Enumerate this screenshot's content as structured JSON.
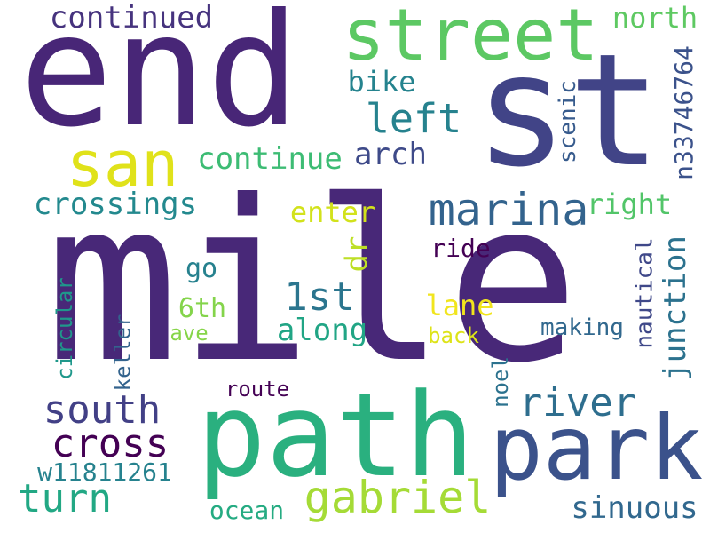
{
  "words": [
    {
      "text": "mile",
      "color": "#482878"
    },
    {
      "text": "end",
      "color": "#482677"
    },
    {
      "text": "st",
      "color": "#414487"
    },
    {
      "text": "path",
      "color": "#2ab07f"
    },
    {
      "text": "street",
      "color": "#5cc863"
    },
    {
      "text": "park",
      "color": "#3b528b"
    },
    {
      "text": "san",
      "color": "#e0e21a"
    },
    {
      "text": "marina",
      "color": "#33638d"
    },
    {
      "text": "gabriel",
      "color": "#a5db36"
    },
    {
      "text": "left",
      "color": "#26828e"
    },
    {
      "text": "south",
      "color": "#424086"
    },
    {
      "text": "cross",
      "color": "#440154"
    },
    {
      "text": "river",
      "color": "#2e6e8e"
    },
    {
      "text": "turn",
      "color": "#22a884"
    },
    {
      "text": "1st",
      "color": "#2b758e"
    },
    {
      "text": "continue",
      "color": "#3dbc74"
    },
    {
      "text": "continued",
      "color": "#46337e"
    },
    {
      "text": "crossings",
      "color": "#23898e"
    },
    {
      "text": "junction",
      "color": "#2c728e"
    },
    {
      "text": "dr",
      "color": "#bddf26"
    },
    {
      "text": "along",
      "color": "#21a585"
    },
    {
      "text": "sinuous",
      "color": "#31688e"
    },
    {
      "text": "arch",
      "color": "#3e4a89"
    },
    {
      "text": "north",
      "color": "#5ec962"
    },
    {
      "text": "n33746764",
      "color": "#3b528b"
    },
    {
      "text": "right",
      "color": "#52c569"
    },
    {
      "text": "enter",
      "color": "#d2e21b"
    },
    {
      "text": "bike",
      "color": "#25838e"
    },
    {
      "text": "lane",
      "color": "#f1e51d"
    },
    {
      "text": "go",
      "color": "#26818e"
    },
    {
      "text": "6th",
      "color": "#84d44b"
    },
    {
      "text": "w11811261",
      "color": "#26828e"
    },
    {
      "text": "ocean",
      "color": "#25ab82"
    },
    {
      "text": "scenic",
      "color": "#375b8d"
    },
    {
      "text": "nautical",
      "color": "#3f4889"
    },
    {
      "text": "ride",
      "color": "#440154"
    },
    {
      "text": "making",
      "color": "#31688e"
    },
    {
      "text": "back",
      "color": "#dde318"
    },
    {
      "text": "ave",
      "color": "#86d549"
    },
    {
      "text": "keller",
      "color": "#33638d"
    },
    {
      "text": "circular",
      "color": "#1f988b"
    },
    {
      "text": "route",
      "color": "#440154"
    },
    {
      "text": "noel",
      "color": "#2c728e"
    }
  ]
}
